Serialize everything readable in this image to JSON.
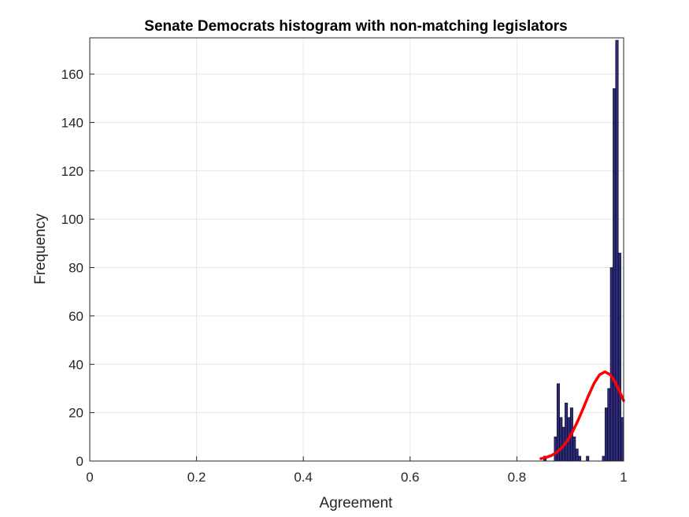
{
  "chart_data": {
    "type": "bar",
    "title": "Senate Democrats histogram with non-matching legislators",
    "xlabel": "Agreement",
    "ylabel": "Frequency",
    "xlim": [
      0,
      1
    ],
    "ylim": [
      0,
      175
    ],
    "grid": true,
    "x_ticks": [
      "0",
      "0.2",
      "0.4",
      "0.6",
      "0.8",
      "1"
    ],
    "y_ticks": [
      "0",
      "20",
      "40",
      "60",
      "80",
      "100",
      "120",
      "140",
      "160"
    ],
    "bar_color": "#2e2a80",
    "bar_edge_color": "#000000",
    "bin_width": 0.005,
    "series": [
      {
        "x": [
          0.8525,
          0.8725,
          0.8775,
          0.8825,
          0.8875,
          0.8925,
          0.8975,
          0.9025,
          0.9075,
          0.9125,
          0.9175,
          0.9325,
          0.9625,
          0.9675,
          0.9725,
          0.9775,
          0.9825,
          0.9875,
          0.9925,
          0.9975
        ],
        "values": [
          2,
          10,
          32,
          18,
          14,
          24,
          18,
          22,
          10,
          5,
          2,
          2,
          2,
          22,
          30,
          80,
          154,
          174,
          86,
          18
        ]
      }
    ],
    "fit_curve": {
      "color": "#ff0000",
      "x": [
        0.845,
        0.855,
        0.865,
        0.875,
        0.885,
        0.895,
        0.905,
        0.915,
        0.925,
        0.935,
        0.945,
        0.955,
        0.965,
        0.975,
        0.985,
        0.995,
        1.0
      ],
      "y": [
        1.0,
        1.5,
        2.3,
        3.7,
        5.7,
        8.5,
        12.4,
        17.0,
        22.2,
        27.5,
        32.3,
        35.7,
        36.9,
        35.7,
        32.3,
        27.5,
        25.0
      ]
    }
  }
}
